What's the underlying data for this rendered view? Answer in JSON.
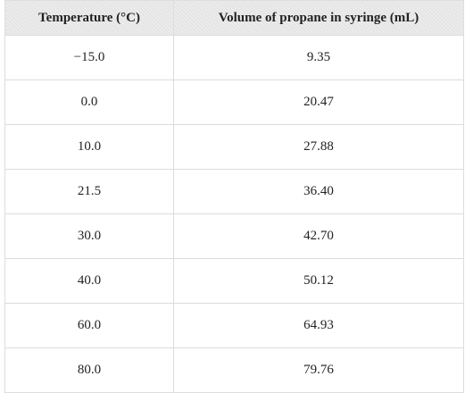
{
  "table": {
    "headers": [
      "Temperature (°C)",
      "Volume of propane in syringe (mL)"
    ],
    "rows": [
      [
        "−15.0",
        "9.35"
      ],
      [
        "0.0",
        "20.47"
      ],
      [
        "10.0",
        "27.88"
      ],
      [
        "21.5",
        "36.40"
      ],
      [
        "30.0",
        "42.70"
      ],
      [
        "40.0",
        "50.12"
      ],
      [
        "60.0",
        "64.93"
      ],
      [
        "80.0",
        "79.76"
      ]
    ]
  }
}
